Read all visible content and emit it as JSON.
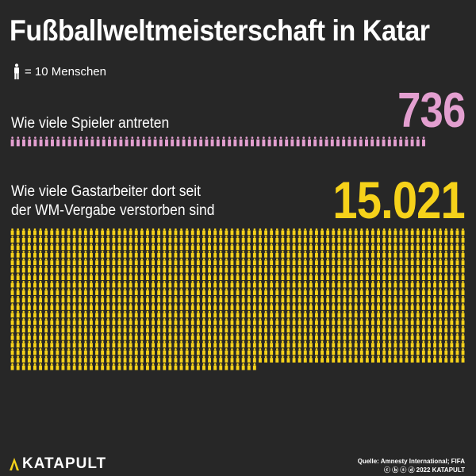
{
  "title": "Fußballweltmeisterschaft in Katar",
  "legend": {
    "label": "= 10 Menschen",
    "per_icon": 10,
    "icon": "person-icon"
  },
  "chart_data": {
    "type": "pictogram",
    "unit_per_icon": 10,
    "series": [
      {
        "name": "Wie viele Spieler antreten",
        "value": 736,
        "value_label": "736",
        "color": "#e39fd0"
      },
      {
        "name": "Wie viele Gastarbeiter dort seit der WM-Vergabe verstorben sind",
        "value": 15021,
        "value_label": "15.021",
        "color": "#f6d21a"
      }
    ]
  },
  "rows": [
    {
      "label_lines": [
        "Wie viele Spieler antreten"
      ],
      "number": "736"
    },
    {
      "label_lines": [
        "Wie viele Gastarbeiter dort seit",
        "der WM-Vergabe verstorben sind"
      ],
      "number": "15.021"
    }
  ],
  "footer": {
    "logo_text": "KATAPULT",
    "logo_icon": "katapult-logo-icon",
    "source": "Quelle: Amnesty International; FIFA",
    "copyright_icons": "ⓒ ⓑ ⓢ ⓓ",
    "copyright": "2022 KATAPULT"
  }
}
